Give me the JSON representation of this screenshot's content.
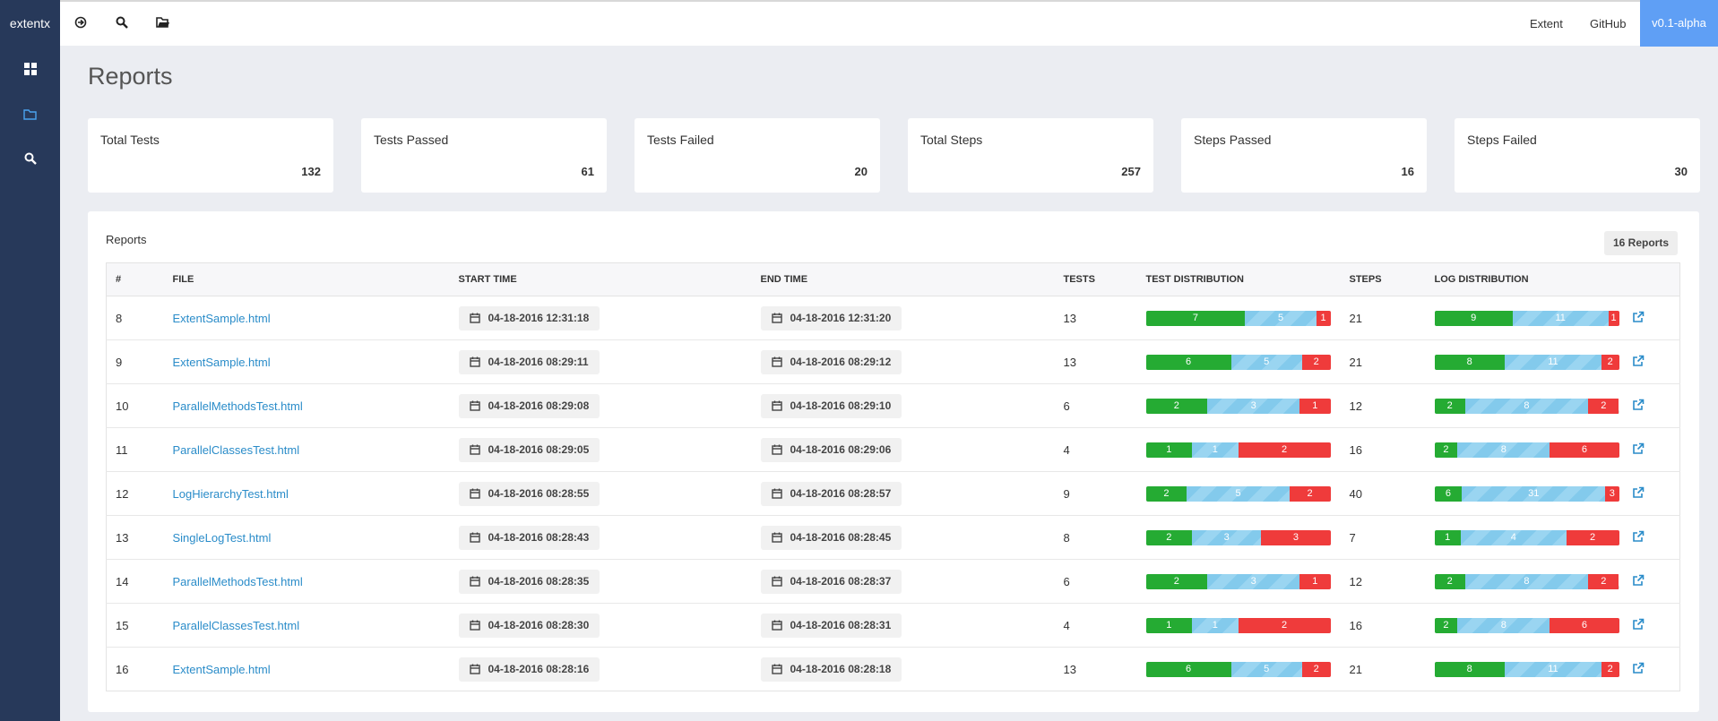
{
  "sidebar": {
    "brand": "extentx"
  },
  "navbar": {
    "links": [
      "Extent",
      "GitHub"
    ],
    "version": "v0.1-alpha"
  },
  "page": {
    "title": "Reports"
  },
  "stats": [
    {
      "label": "Total Tests",
      "value": 132
    },
    {
      "label": "Tests Passed",
      "value": 61
    },
    {
      "label": "Tests Failed",
      "value": 20
    },
    {
      "label": "Total Steps",
      "value": 257
    },
    {
      "label": "Steps Passed",
      "value": 16
    },
    {
      "label": "Steps Failed",
      "value": 30
    }
  ],
  "panel": {
    "title": "Reports",
    "badge": "16 Reports",
    "columns": [
      "#",
      "FILE",
      "START TIME",
      "END TIME",
      "TESTS",
      "TEST DISTRIBUTION",
      "STEPS",
      "LOG DISTRIBUTION"
    ],
    "rows": [
      {
        "id": 8,
        "file": "ExtentSample.html",
        "start": "04-18-2016 12:31:18",
        "end": "04-18-2016 12:31:20",
        "tests": 13,
        "test_distribution": [
          7,
          5,
          1
        ],
        "steps": 21,
        "log_distribution": [
          9,
          11,
          1
        ]
      },
      {
        "id": 9,
        "file": "ExtentSample.html",
        "start": "04-18-2016 08:29:11",
        "end": "04-18-2016 08:29:12",
        "tests": 13,
        "test_distribution": [
          6,
          5,
          2
        ],
        "steps": 21,
        "log_distribution": [
          8,
          11,
          2
        ]
      },
      {
        "id": 10,
        "file": "ParallelMethodsTest.html",
        "start": "04-18-2016 08:29:08",
        "end": "04-18-2016 08:29:10",
        "tests": 6,
        "test_distribution": [
          2,
          3,
          1
        ],
        "steps": 12,
        "log_distribution": [
          2,
          8,
          2
        ]
      },
      {
        "id": 11,
        "file": "ParallelClassesTest.html",
        "start": "04-18-2016 08:29:05",
        "end": "04-18-2016 08:29:06",
        "tests": 4,
        "test_distribution": [
          1,
          1,
          2
        ],
        "steps": 16,
        "log_distribution": [
          2,
          8,
          6
        ]
      },
      {
        "id": 12,
        "file": "LogHierarchyTest.html",
        "start": "04-18-2016 08:28:55",
        "end": "04-18-2016 08:28:57",
        "tests": 9,
        "test_distribution": [
          2,
          5,
          2
        ],
        "steps": 40,
        "log_distribution": [
          6,
          31,
          3
        ]
      },
      {
        "id": 13,
        "file": "SingleLogTest.html",
        "start": "04-18-2016 08:28:43",
        "end": "04-18-2016 08:28:45",
        "tests": 8,
        "test_distribution": [
          2,
          3,
          3
        ],
        "steps": 7,
        "log_distribution": [
          1,
          4,
          2
        ]
      },
      {
        "id": 14,
        "file": "ParallelMethodsTest.html",
        "start": "04-18-2016 08:28:35",
        "end": "04-18-2016 08:28:37",
        "tests": 6,
        "test_distribution": [
          2,
          3,
          1
        ],
        "steps": 12,
        "log_distribution": [
          2,
          8,
          2
        ]
      },
      {
        "id": 15,
        "file": "ParallelClassesTest.html",
        "start": "04-18-2016 08:28:30",
        "end": "04-18-2016 08:28:31",
        "tests": 4,
        "test_distribution": [
          1,
          1,
          2
        ],
        "steps": 16,
        "log_distribution": [
          2,
          8,
          6
        ]
      },
      {
        "id": 16,
        "file": "ExtentSample.html",
        "start": "04-18-2016 08:28:16",
        "end": "04-18-2016 08:28:18",
        "tests": 13,
        "test_distribution": [
          6,
          5,
          2
        ],
        "steps": 21,
        "log_distribution": [
          8,
          11,
          2
        ]
      }
    ]
  }
}
